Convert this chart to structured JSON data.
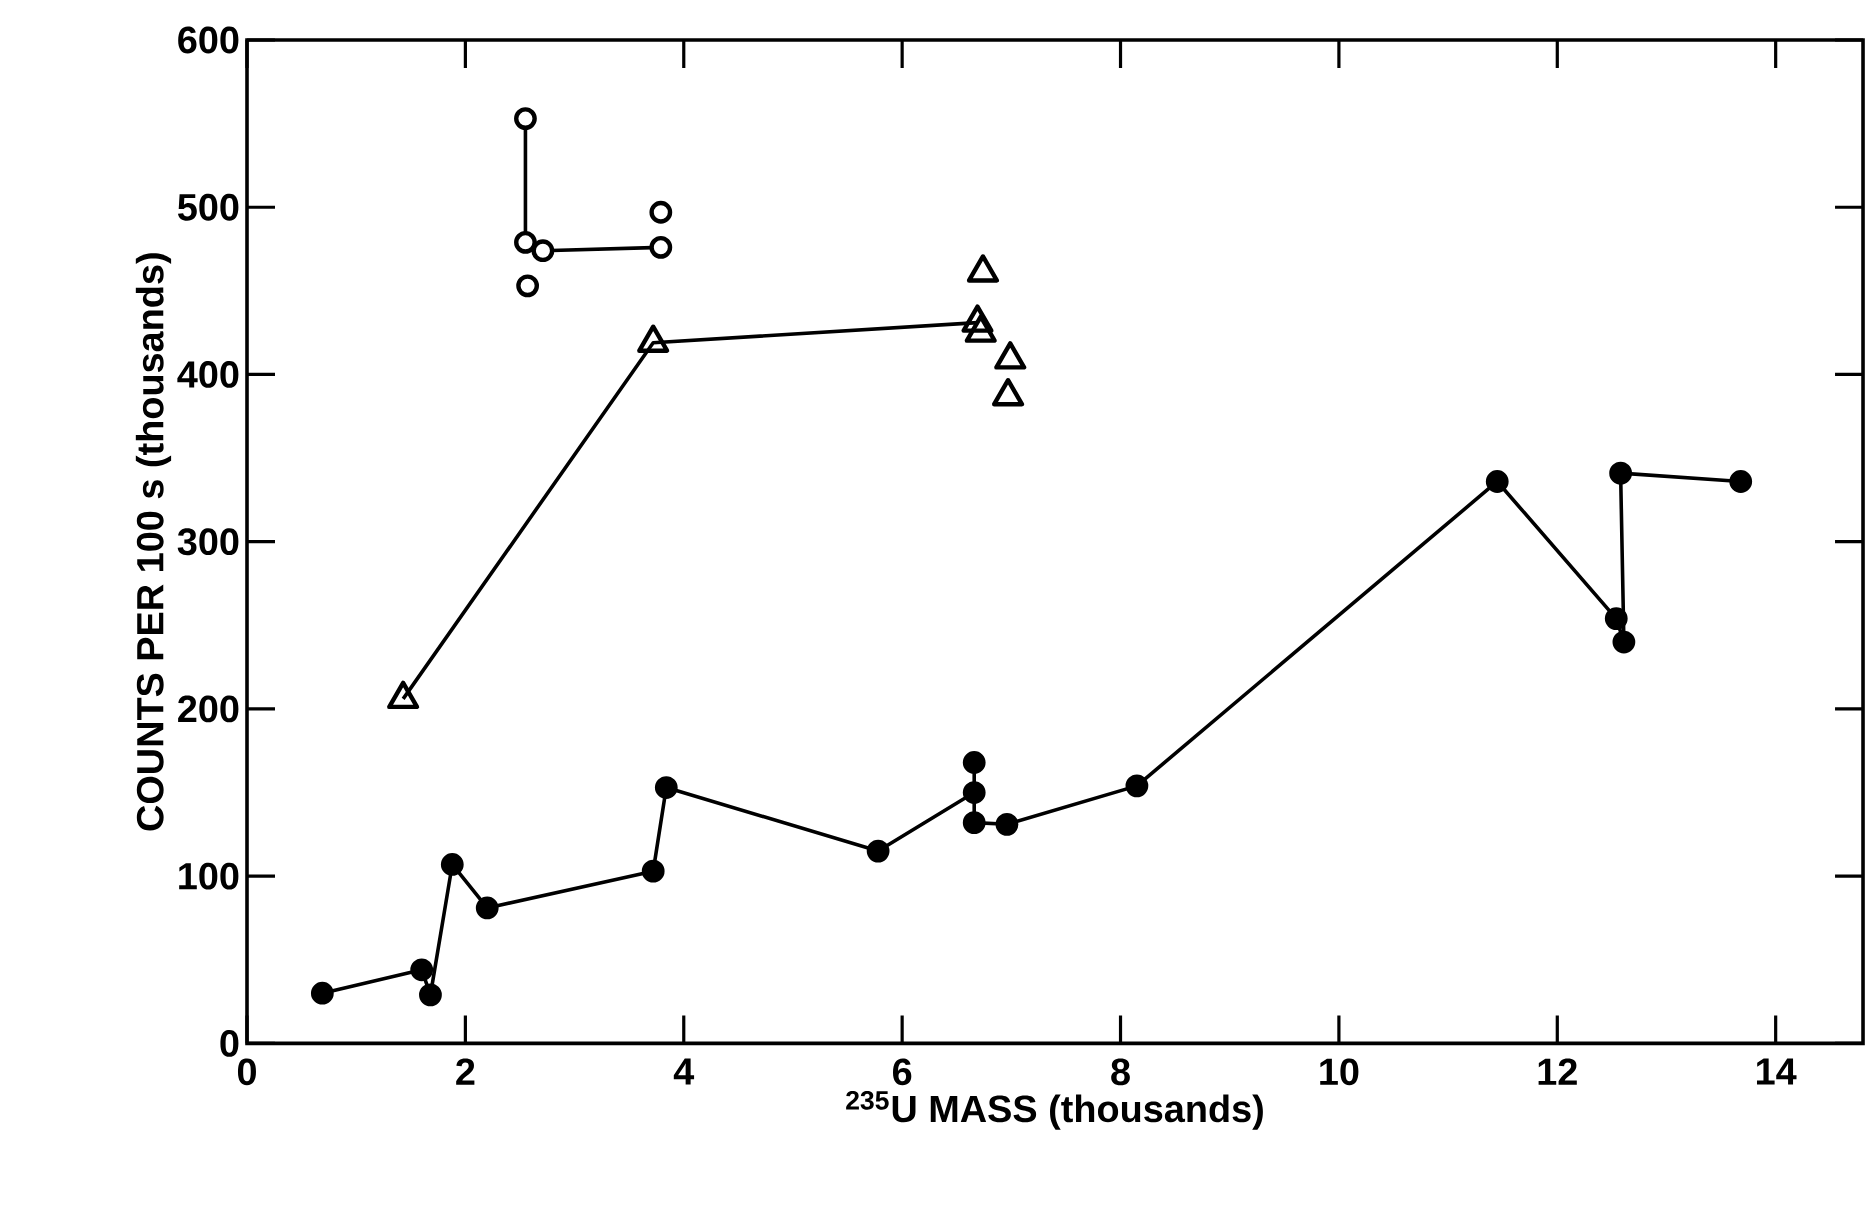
{
  "chart_data": {
    "type": "line",
    "xlabel": "$^{235}$U MASS (thousands)",
    "ylabel": "COUNTS PER 100 s (thousands)",
    "xlim": [
      0,
      14.8
    ],
    "ylim": [
      0,
      600
    ],
    "xticks": [
      0,
      2,
      4,
      6,
      8,
      10,
      12,
      14
    ],
    "yticks": [
      0,
      100,
      200,
      300,
      400,
      500,
      600
    ],
    "series": [
      {
        "color": "#000000",
        "marker": "circle",
        "x": [
          0.69,
          1.6,
          1.68,
          1.88,
          2.2,
          3.72,
          3.84,
          5.78,
          6.66,
          6.66,
          6.66,
          6.96,
          8.15,
          11.45,
          12.54,
          12.61,
          12.58,
          13.68
        ],
        "values": [
          30,
          44,
          29,
          107,
          81,
          103,
          153,
          115,
          150,
          168,
          132,
          131,
          154,
          336,
          254,
          240,
          341,
          336
        ]
      },
      {
        "color": "#000000",
        "marker": "circle",
        "x": [
          2.55,
          2.55,
          2.71,
          3.79
        ],
        "values": [
          553,
          479,
          474,
          476
        ]
      },
      {
        "color": "#000000",
        "marker": "circle",
        "type": "scatter",
        "x": [
          2.57,
          3.79
        ],
        "values": [
          453,
          497
        ]
      },
      {
        "color": "#000000",
        "marker": "triangle",
        "x": [
          1.43,
          3.72,
          6.69
        ],
        "values": [
          206,
          419,
          431
        ]
      },
      {
        "color": "#000000",
        "marker": "triangle",
        "type": "scatter",
        "x": [
          6.74,
          6.72,
          6.99,
          6.97
        ],
        "values": [
          461,
          425,
          409,
          387
        ]
      }
    ]
  }
}
